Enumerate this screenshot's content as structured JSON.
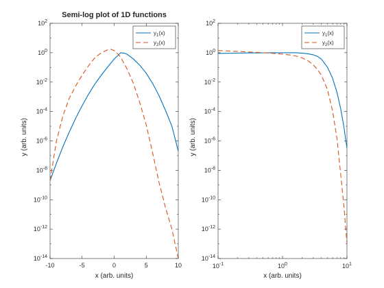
{
  "chart_data": [
    {
      "type": "line",
      "title": "Semi-log plot of 1D functions",
      "xlabel": "x (arb. units)",
      "ylabel": "y (arb. units)",
      "xscale": "linear",
      "yscale": "log",
      "xlim": [
        -10,
        10
      ],
      "ylim": [
        1e-14,
        100
      ],
      "xticks": [
        {
          "value": -10,
          "label": "-10"
        },
        {
          "value": -5,
          "label": "-5"
        },
        {
          "value": 0,
          "label": "0"
        },
        {
          "value": 5,
          "label": "5"
        },
        {
          "value": 10,
          "label": "10"
        }
      ],
      "yticks": [
        {
          "value": 1e-14,
          "base": "10",
          "exp": "-14"
        },
        {
          "value": 1e-12,
          "base": "10",
          "exp": "-12"
        },
        {
          "value": 1e-10,
          "base": "10",
          "exp": "-10"
        },
        {
          "value": 1e-08,
          "base": "10",
          "exp": "-8"
        },
        {
          "value": 1e-06,
          "base": "10",
          "exp": "-6"
        },
        {
          "value": 0.0001,
          "base": "10",
          "exp": "-4"
        },
        {
          "value": 0.01,
          "base": "10",
          "exp": "-2"
        },
        {
          "value": 1,
          "base": "10",
          "exp": "0"
        },
        {
          "value": 100,
          "base": "10",
          "exp": "2"
        }
      ],
      "grid": false,
      "legend_position": "top-right",
      "series": [
        {
          "name": "y1(x)",
          "label_base": "y",
          "label_sub": "1",
          "label_suffix": "(x)",
          "color": "#0072bd",
          "style": "solid",
          "x": [
            -10,
            -9,
            -8,
            -7,
            -6,
            -5,
            -4,
            -3,
            -2,
            -1,
            0,
            0.5,
            1,
            1.5,
            2,
            3,
            4,
            5,
            6,
            7,
            8,
            9,
            10
          ],
          "y": [
            2e-09,
            3e-08,
            4e-07,
            4e-06,
            3.5e-05,
            0.00025,
            0.0015,
            0.0075,
            0.03,
            0.11,
            0.37,
            0.6,
            1.0,
            0.95,
            0.8,
            0.37,
            0.14,
            0.04,
            0.008,
            0.0012,
            0.00012,
            1e-05,
            2e-07
          ]
        },
        {
          "name": "y2(x)",
          "label_base": "y",
          "label_sub": "2",
          "label_suffix": "(x)",
          "color": "#d95319",
          "style": "dashed",
          "x": [
            -10,
            -9,
            -8,
            -7,
            -6,
            -5,
            -4,
            -3,
            -2,
            -1,
            -0.5,
            0,
            0.5,
            1,
            2,
            3,
            4,
            5,
            6,
            7,
            8,
            9,
            10
          ],
          "y": [
            2e-09,
            1e-06,
            5e-05,
            0.0008,
            0.0055,
            0.03,
            0.13,
            0.45,
            1.0,
            1.6,
            1.7,
            1.4,
            0.9,
            0.5,
            0.08,
            0.008,
            0.0004,
            1.2e-05,
            1.5e-07,
            1.5e-09,
            3e-11,
            1e-12,
            1e-14
          ]
        }
      ]
    },
    {
      "type": "line",
      "title": "",
      "xlabel": "x (arb. units)",
      "ylabel": "y (arb. units)",
      "xscale": "log",
      "yscale": "log",
      "xlim": [
        0.1,
        10
      ],
      "ylim": [
        1e-14,
        100
      ],
      "xticks": [
        {
          "value": 0.1,
          "base": "10",
          "exp": "-1"
        },
        {
          "value": 1,
          "base": "10",
          "exp": "0"
        },
        {
          "value": 10,
          "base": "10",
          "exp": "1"
        }
      ],
      "yticks": [
        {
          "value": 1e-14,
          "base": "10",
          "exp": "-14"
        },
        {
          "value": 1e-12,
          "base": "10",
          "exp": "-12"
        },
        {
          "value": 1e-10,
          "base": "10",
          "exp": "-10"
        },
        {
          "value": 1e-08,
          "base": "10",
          "exp": "-8"
        },
        {
          "value": 1e-06,
          "base": "10",
          "exp": "-6"
        },
        {
          "value": 0.0001,
          "base": "10",
          "exp": "-4"
        },
        {
          "value": 0.01,
          "base": "10",
          "exp": "-2"
        },
        {
          "value": 1,
          "base": "10",
          "exp": "0"
        },
        {
          "value": 100,
          "base": "10",
          "exp": "2"
        }
      ],
      "grid": false,
      "legend_position": "top-right",
      "series": [
        {
          "name": "y1(x)",
          "label_base": "y",
          "label_sub": "1",
          "label_suffix": "(x)",
          "color": "#0072bd",
          "style": "solid",
          "x": [
            0.1,
            0.2,
            0.3,
            0.5,
            0.7,
            1,
            1.3,
            1.6,
            2,
            2.5,
            3,
            3.5,
            4,
            5,
            6,
            7,
            8,
            9,
            10
          ],
          "y": [
            0.9,
            0.95,
            0.97,
            0.99,
            1.0,
            1.0,
            1.0,
            1.0,
            0.95,
            0.85,
            0.72,
            0.55,
            0.37,
            0.1,
            0.018,
            0.002,
            0.00015,
            8e-06,
            3e-07
          ]
        },
        {
          "name": "y2(x)",
          "label_base": "y",
          "label_sub": "2",
          "label_suffix": "(x)",
          "color": "#d95319",
          "style": "dashed",
          "x": [
            0.1,
            0.15,
            0.2,
            0.3,
            0.5,
            0.7,
            1,
            1.3,
            1.6,
            2,
            2.5,
            3,
            3.5,
            4,
            5,
            6,
            7,
            8,
            9,
            10
          ],
          "y": [
            1.4,
            1.3,
            1.22,
            1.12,
            1.0,
            0.92,
            0.8,
            0.7,
            0.6,
            0.45,
            0.28,
            0.15,
            0.07,
            0.03,
            0.003,
            0.0001,
            1.5e-06,
            5e-09,
            3e-11,
            1e-13
          ]
        }
      ]
    }
  ]
}
